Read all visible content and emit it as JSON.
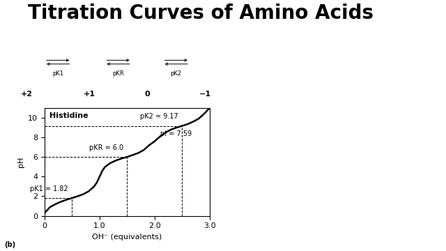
{
  "slide_title": "Titration Curves of Amino Acids",
  "panel_label": "(b)",
  "species": {
    "charges": [
      "+2",
      "+1",
      "0",
      "−1"
    ],
    "equilibria": [
      "pK1",
      "pKR",
      "pK2"
    ]
  },
  "chart_data": {
    "type": "line",
    "title": "Histidine",
    "color": "#000000",
    "x_label": "OH⁻ (equivalents)",
    "y_label": "pH",
    "x": [
      0,
      0.1,
      0.2,
      0.3,
      0.4,
      0.5,
      0.6,
      0.7,
      0.8,
      0.9,
      0.95,
      1.0,
      1.05,
      1.1,
      1.2,
      1.3,
      1.4,
      1.5,
      1.6,
      1.7,
      1.8,
      1.9,
      2.0,
      2.1,
      2.2,
      2.3,
      2.4,
      2.5,
      2.6,
      2.7,
      2.8,
      2.9,
      3.0
    ],
    "values": [
      0.3,
      0.9,
      1.2,
      1.45,
      1.65,
      1.82,
      2.0,
      2.2,
      2.5,
      3.0,
      3.4,
      4.0,
      4.6,
      5.0,
      5.4,
      5.65,
      5.85,
      6.0,
      6.2,
      6.4,
      6.7,
      7.2,
      7.6,
      8.1,
      8.5,
      8.8,
      9.0,
      9.17,
      9.35,
      9.6,
      9.9,
      10.4,
      11.0
    ],
    "xlim": [
      0,
      3
    ],
    "ylim": [
      0,
      11
    ],
    "xticks": [
      0,
      {
        "value": 1,
        "label": "1.0"
      },
      {
        "value": 2,
        "label": "2.0"
      },
      {
        "value": 3,
        "label": "3.0"
      }
    ],
    "yticks": [
      0,
      2,
      4,
      6,
      8,
      10
    ],
    "pk_points": [
      {
        "label": "pK1 = 1.82",
        "x": 0.5,
        "y": 1.82
      },
      {
        "label": "pKR = 6.0",
        "x": 1.5,
        "y": 6.0
      },
      {
        "label": "pK2 = 9.17",
        "x": 2.5,
        "y": 9.17
      }
    ],
    "annotations": [
      {
        "text": "pI = 7.59",
        "x": 2.0,
        "y": 7.59
      }
    ],
    "line_style": "solid",
    "grid": false
  }
}
